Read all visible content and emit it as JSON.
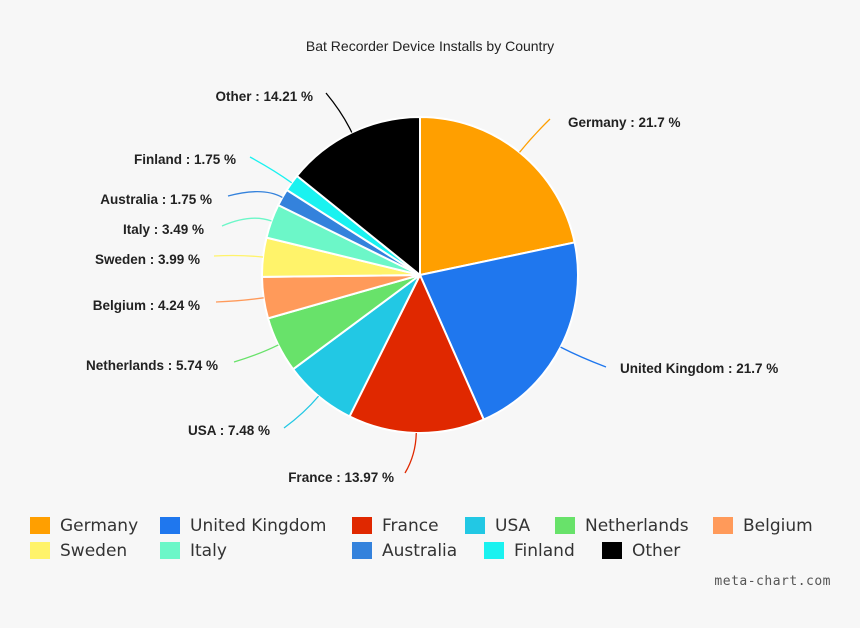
{
  "chart_data": {
    "type": "pie",
    "title": "Bat Recorder Device Installs by Country",
    "slices": [
      {
        "name": "Germany",
        "value": 21.7,
        "color": "#ff9f00",
        "label": "Germany : 21.7 %"
      },
      {
        "name": "United Kingdom",
        "value": 21.7,
        "color": "#1f77ee",
        "label": "United Kingdom : 21.7 %"
      },
      {
        "name": "France",
        "value": 13.97,
        "color": "#e02800",
        "label": "France : 13.97 %"
      },
      {
        "name": "USA",
        "value": 7.48,
        "color": "#22c8e4",
        "label": "USA : 7.48 %"
      },
      {
        "name": "Netherlands",
        "value": 5.74,
        "color": "#68e26a",
        "label": "Netherlands : 5.74 %"
      },
      {
        "name": "Belgium",
        "value": 4.24,
        "color": "#ff9a5a",
        "label": "Belgium : 4.24 %"
      },
      {
        "name": "Sweden",
        "value": 3.99,
        "color": "#fff36a",
        "label": "Sweden : 3.99 %"
      },
      {
        "name": "Italy",
        "value": 3.49,
        "color": "#6cf7c8",
        "label": "Italy : 3.49 %"
      },
      {
        "name": "Australia",
        "value": 1.75,
        "color": "#3482dc",
        "label": "Australia : 1.75 %"
      },
      {
        "name": "Finland",
        "value": 1.75,
        "color": "#1af2f0",
        "label": "Finland : 1.75 %"
      },
      {
        "name": "Other",
        "value": 14.21,
        "color": "#000000",
        "label": "Other : 14.21 %"
      }
    ],
    "legend": {
      "placement": "bottom",
      "rows": [
        [
          "Germany",
          "United Kingdom",
          "France",
          "USA",
          "Netherlands",
          "Belgium"
        ],
        [
          "Sweden",
          "Italy",
          "Australia",
          "Finland",
          "Other"
        ]
      ]
    }
  },
  "footer": {
    "credit": "meta-chart.com"
  }
}
